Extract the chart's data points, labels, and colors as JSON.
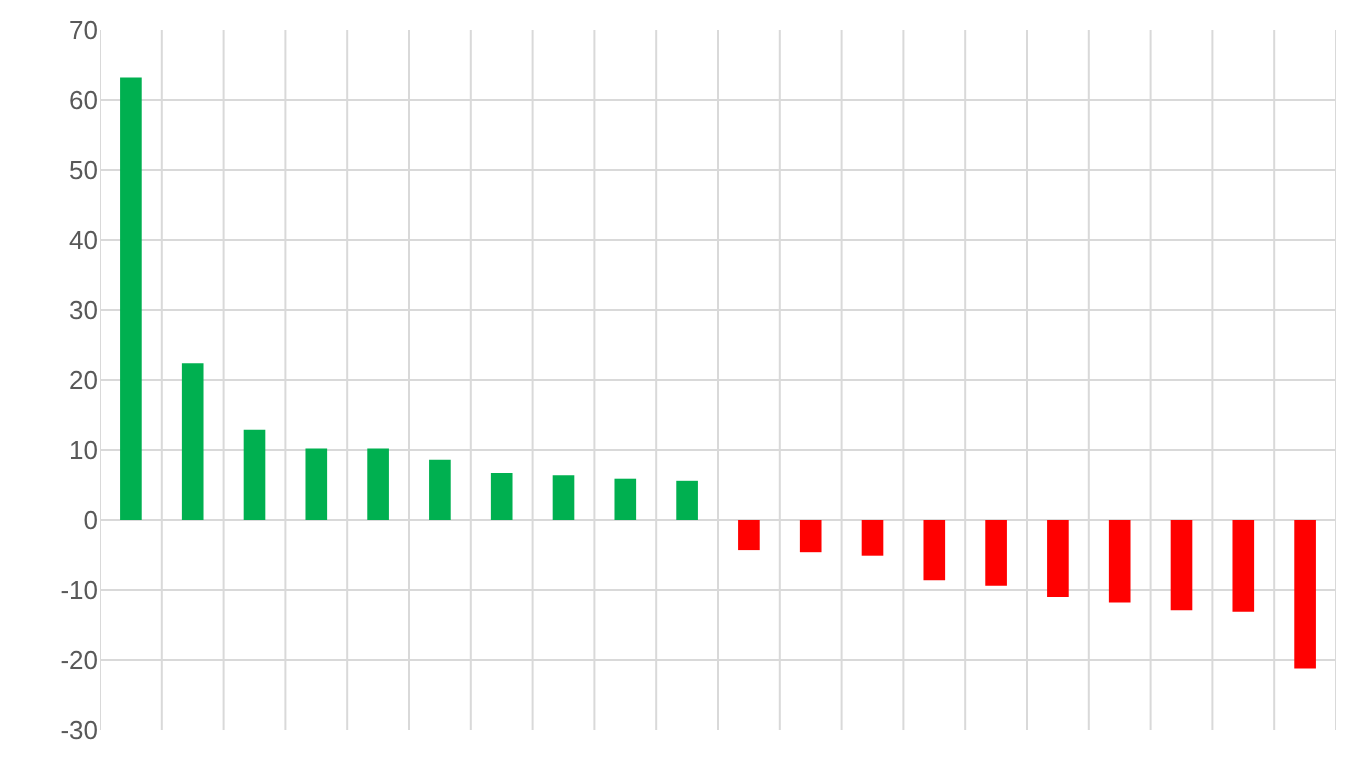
{
  "chart_data": {
    "type": "bar",
    "categories": [
      null,
      null,
      null,
      null,
      null,
      null,
      null,
      null,
      null,
      null,
      null,
      null,
      null,
      null,
      null,
      null,
      null,
      null,
      null,
      null
    ],
    "values": [
      63.2,
      22.4,
      12.9,
      10.2,
      10.2,
      8.6,
      6.7,
      6.4,
      5.9,
      5.6,
      -4.3,
      -4.6,
      -5.1,
      -8.6,
      -9.4,
      -11.0,
      -11.8,
      -12.9,
      -13.1,
      -21.2
    ],
    "colors": [
      "#00b050",
      "#00b050",
      "#00b050",
      "#00b050",
      "#00b050",
      "#00b050",
      "#00b050",
      "#00b050",
      "#00b050",
      "#00b050",
      "#ff0000",
      "#ff0000",
      "#ff0000",
      "#ff0000",
      "#ff0000",
      "#ff0000",
      "#ff0000",
      "#ff0000",
      "#ff0000",
      "#ff0000"
    ],
    "ylim": [
      -30,
      70
    ],
    "yticks": [
      -30,
      -20,
      -10,
      0,
      10,
      20,
      30,
      40,
      50,
      60,
      70
    ],
    "grid": true,
    "tick_labels": "y"
  }
}
